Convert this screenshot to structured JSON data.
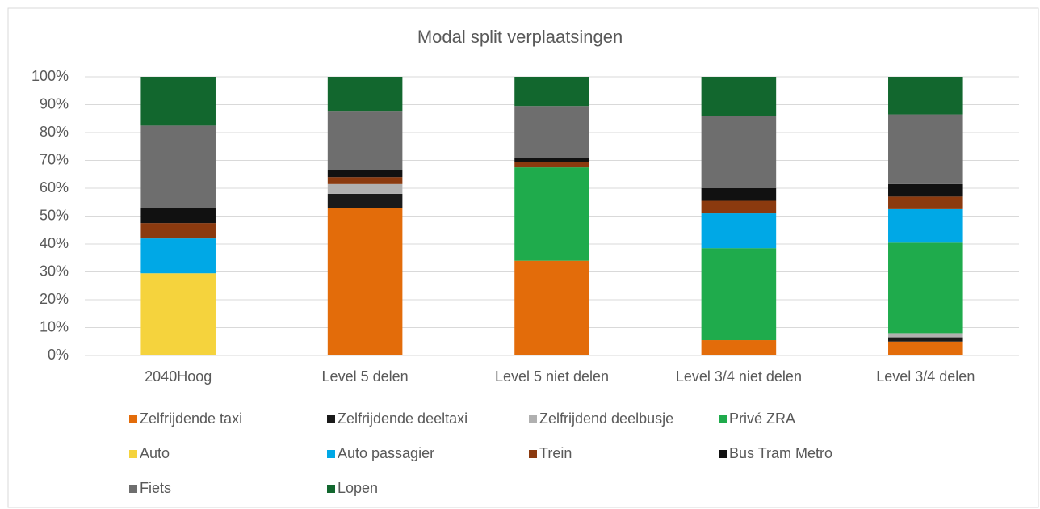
{
  "chart_data": {
    "type": "stacked_bar",
    "title": "Modal split verplaatsingen",
    "categories": [
      "2040Hoog",
      "Level 5 delen",
      "Level 5 niet delen",
      "Level 3/4 niet delen",
      "Level 3/4 delen"
    ],
    "series": [
      {
        "name": "Zelfrijdende taxi",
        "color": "#e36c0a",
        "values": [
          0,
          53,
          34,
          5.5,
          5
        ]
      },
      {
        "name": "Zelfrijdende deeltaxi",
        "color": "#1a1a1a",
        "values": [
          0,
          5,
          0,
          0,
          1.5
        ]
      },
      {
        "name": "Zelfrijdend deelbusje",
        "color": "#b0b0b0",
        "values": [
          0,
          3.5,
          0,
          0,
          1.5
        ]
      },
      {
        "name": "Privé ZRA",
        "color": "#1fab4c",
        "values": [
          0,
          0,
          33.5,
          33,
          32.5
        ]
      },
      {
        "name": "Auto",
        "color": "#f5d33d",
        "values": [
          29.5,
          0,
          0,
          0,
          0
        ]
      },
      {
        "name": "Auto passagier",
        "color": "#00a8e6",
        "values": [
          12.5,
          0,
          0,
          12.5,
          12
        ]
      },
      {
        "name": "Trein",
        "color": "#8b3a0f",
        "values": [
          5.5,
          2.5,
          2,
          4.5,
          4.5
        ]
      },
      {
        "name": "Bus Tram Metro",
        "color": "#111111",
        "values": [
          5.5,
          2.5,
          1.5,
          4.5,
          4.5
        ]
      },
      {
        "name": "Fiets",
        "color": "#6e6e6e",
        "values": [
          29.5,
          21,
          18.5,
          26,
          25
        ]
      },
      {
        "name": "Lopen",
        "color": "#12672e",
        "values": [
          17.5,
          12.5,
          10.5,
          14,
          13.5
        ]
      }
    ],
    "ylim": [
      0,
      100
    ],
    "yticks": [
      {
        "value": 0,
        "label": "0%"
      },
      {
        "value": 10,
        "label": "10%"
      },
      {
        "value": 20,
        "label": "20%"
      },
      {
        "value": 30,
        "label": "30%"
      },
      {
        "value": 40,
        "label": "40%"
      },
      {
        "value": 50,
        "label": "50%"
      },
      {
        "value": 60,
        "label": "60%"
      },
      {
        "value": 70,
        "label": "70%"
      },
      {
        "value": 80,
        "label": "80%"
      },
      {
        "value": 90,
        "label": "90%"
      },
      {
        "value": 100,
        "label": "100%"
      }
    ],
    "grid": true,
    "legend": "bottom"
  }
}
